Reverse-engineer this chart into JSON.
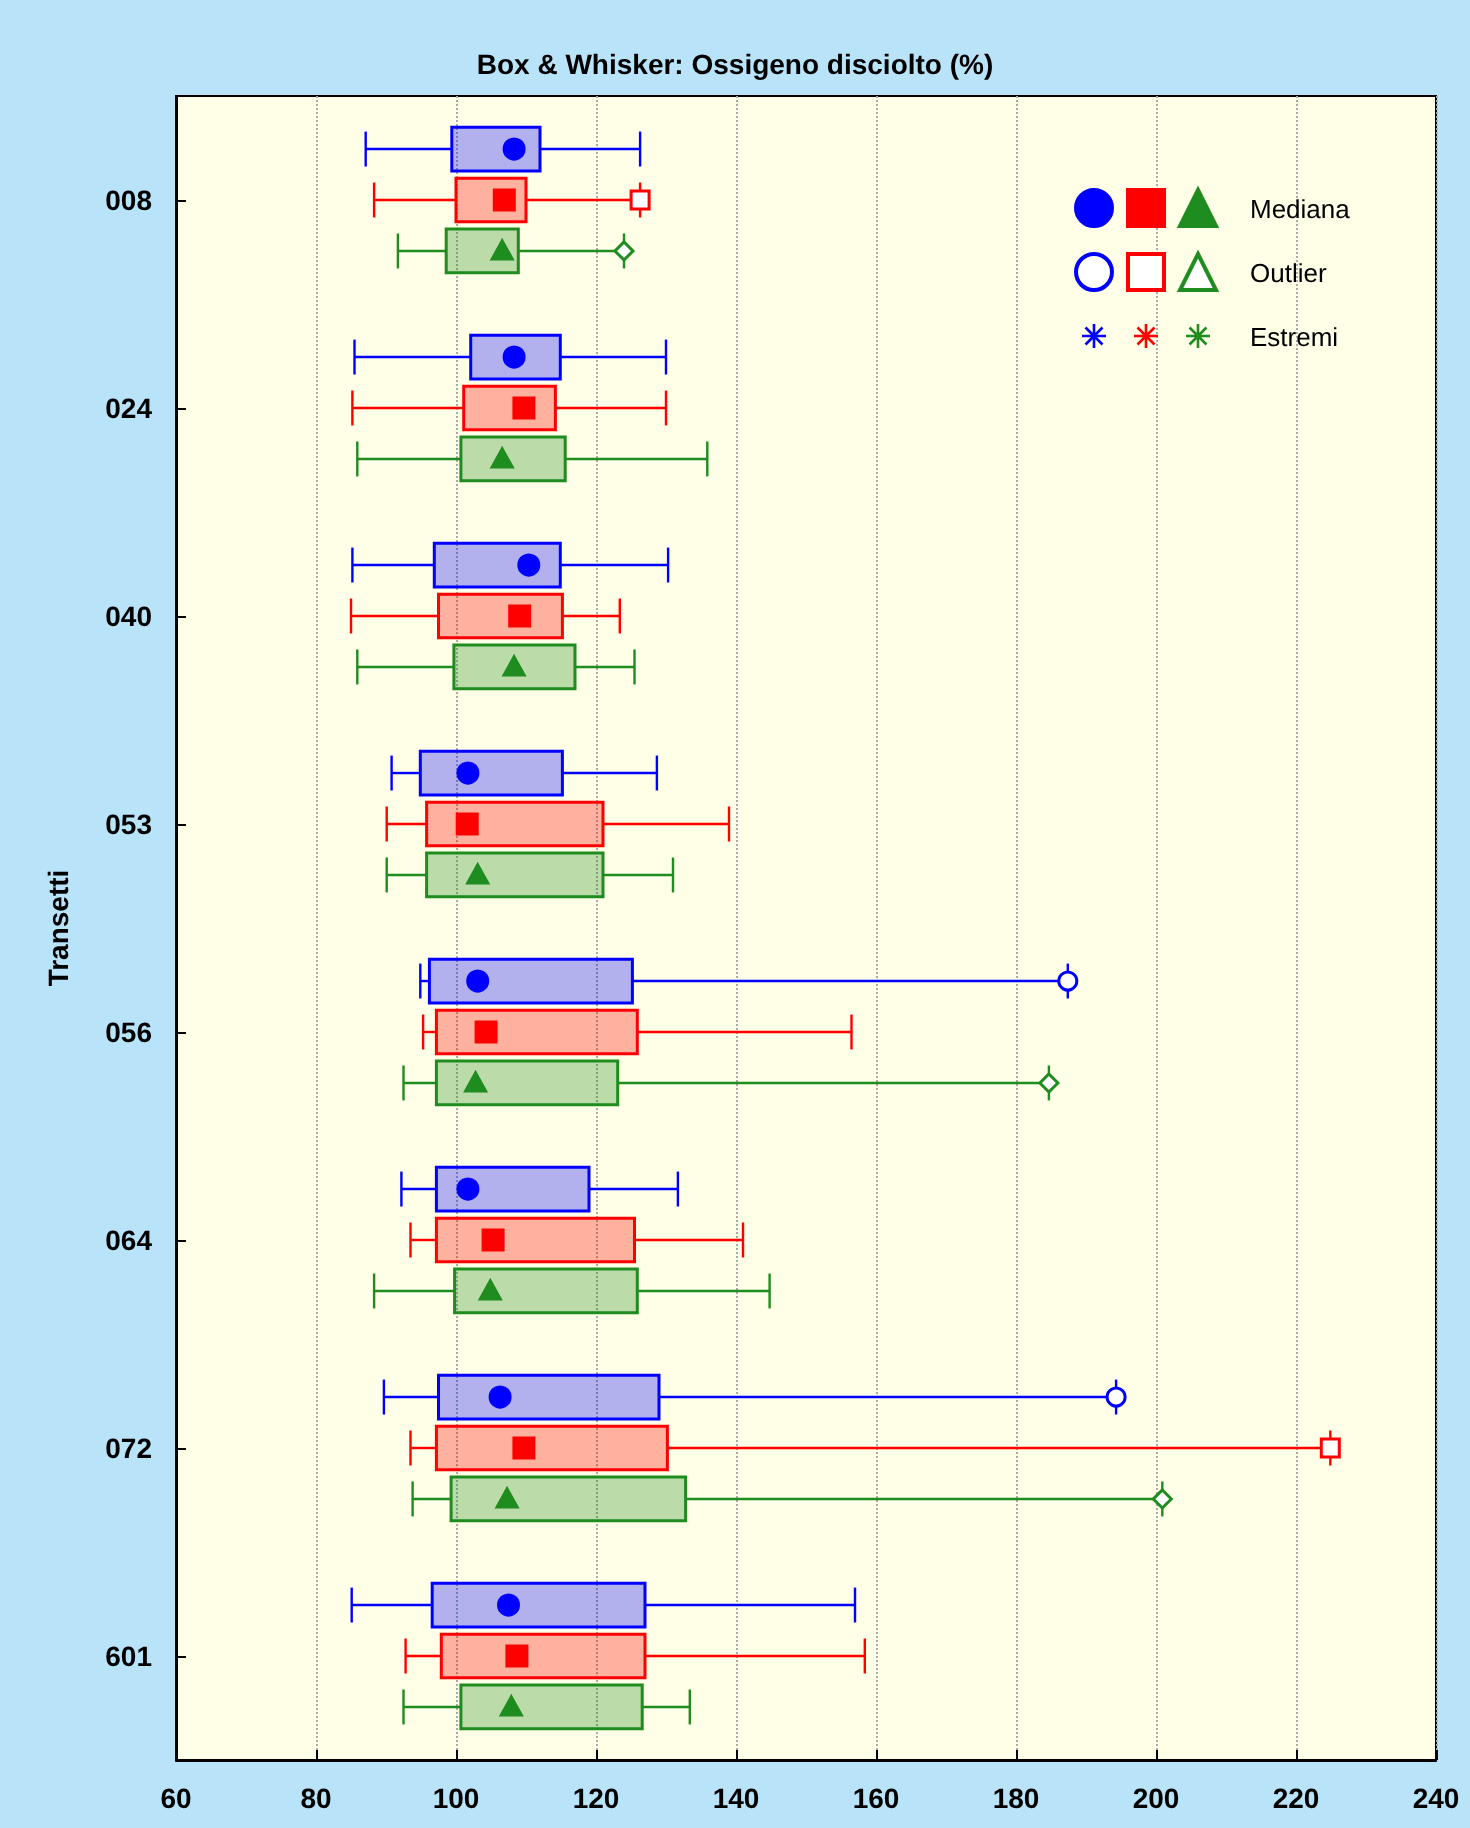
{
  "chart_data": {
    "type": "box",
    "orientation": "horizontal",
    "title": "Box & Whisker: Ossigeno disciolto (%)",
    "ylabel": "Transetti",
    "categories": [
      "008",
      "024",
      "040",
      "053",
      "056",
      "064",
      "072",
      "601"
    ],
    "xlim": [
      60,
      240
    ],
    "xticks": [
      60,
      80,
      100,
      120,
      140,
      160,
      180,
      200,
      220,
      240
    ],
    "grid": "x",
    "annotations": [
      "Mediana",
      "Outlier",
      "Estremi"
    ],
    "series": [
      {
        "color": "#0000ff",
        "marker": "circle",
        "boxes": [
          {
            "low": 87.1,
            "q1": 99.4,
            "median": 108.3,
            "q3": 112,
            "high": 126.3
          },
          {
            "low": 85.5,
            "q1": 102.1,
            "median": 108.3,
            "q3": 114.9,
            "high": 130
          },
          {
            "low": 85.2,
            "q1": 96.9,
            "median": 110.4,
            "q3": 114.9,
            "high": 130.3
          },
          {
            "low": 90.8,
            "q1": 94.9,
            "median": 101.7,
            "q3": 115.2,
            "high": 128.7
          },
          {
            "low": 94.9,
            "q1": 96.2,
            "median": 103.1,
            "q3": 125.2,
            "high": 187.4,
            "outliers": [
              187.4
            ]
          },
          {
            "low": 92.2,
            "q1": 97.2,
            "median": 101.7,
            "q3": 119,
            "high": 131.7
          },
          {
            "low": 89.7,
            "q1": 97.5,
            "median": 106.3,
            "q3": 129,
            "high": 194.3,
            "outliers": [
              194.3
            ]
          },
          {
            "low": 85.1,
            "q1": 96.6,
            "median": 107.5,
            "q3": 127,
            "high": 157
          }
        ]
      },
      {
        "color": "#ff0000",
        "marker": "square",
        "boxes": [
          {
            "low": 88.3,
            "q1": 100,
            "median": 106.9,
            "q3": 110,
            "high": 126.3,
            "outliers": [
              126.3
            ]
          },
          {
            "low": 85.2,
            "q1": 101.1,
            "median": 109.7,
            "q3": 114.2,
            "high": 130
          },
          {
            "low": 85,
            "q1": 97.5,
            "median": 109.1,
            "q3": 115.2,
            "high": 123.4
          },
          {
            "low": 90.1,
            "q1": 95.8,
            "median": 101.6,
            "q3": 121,
            "high": 139
          },
          {
            "low": 95.3,
            "q1": 97.2,
            "median": 104.3,
            "q3": 125.9,
            "high": 156.5
          },
          {
            "low": 93.5,
            "q1": 97.2,
            "median": 105.3,
            "q3": 125.5,
            "high": 141
          },
          {
            "low": 93.5,
            "q1": 97.2,
            "median": 109.7,
            "q3": 130.2,
            "high": 224.9,
            "outliers": [
              224.9
            ]
          },
          {
            "low": 92.8,
            "q1": 97.9,
            "median": 108.7,
            "q3": 127,
            "high": 158.4
          }
        ]
      },
      {
        "color": "#1f8c1f",
        "marker": "triangle",
        "boxes": [
          {
            "low": 91.7,
            "q1": 98.6,
            "median": 106.6,
            "q3": 108.9,
            "high": 124,
            "outliers": [
              124
            ]
          },
          {
            "low": 85.9,
            "q1": 100.7,
            "median": 106.6,
            "q3": 115.6,
            "high": 135.9
          },
          {
            "low": 85.9,
            "q1": 99.7,
            "median": 108.3,
            "q3": 117,
            "high": 125.5
          },
          {
            "low": 90.1,
            "q1": 95.8,
            "median": 103.1,
            "q3": 121,
            "high": 131
          },
          {
            "low": 92.5,
            "q1": 97.2,
            "median": 102.8,
            "q3": 123.1,
            "high": 184.7,
            "outliers": [
              184.7
            ]
          },
          {
            "low": 88.3,
            "q1": 99.8,
            "median": 104.9,
            "q3": 125.9,
            "high": 144.8
          },
          {
            "low": 93.8,
            "q1": 99.3,
            "median": 107.3,
            "q3": 132.8,
            "high": 200.9,
            "outliers": [
              200.9
            ]
          },
          {
            "low": 92.5,
            "q1": 100.7,
            "median": 107.9,
            "q3": 126.6,
            "high": 133.4
          }
        ]
      }
    ]
  }
}
